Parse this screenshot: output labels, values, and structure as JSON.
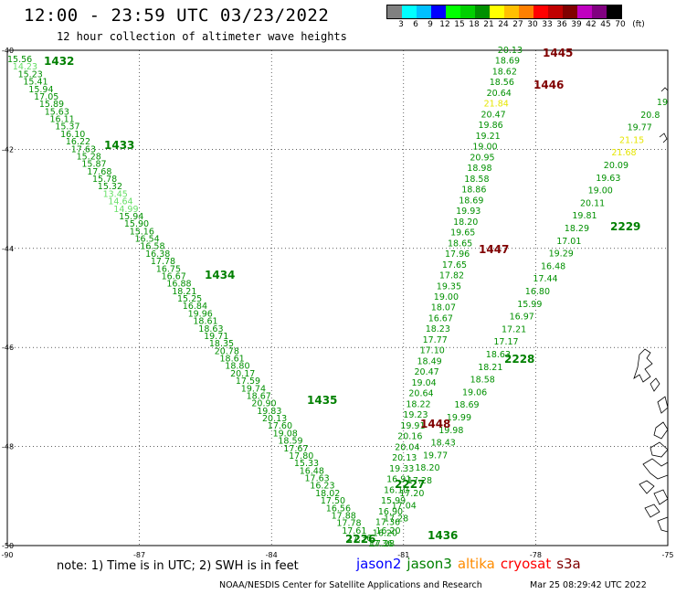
{
  "title": "12:00 - 23:59 UTC 03/23/2022",
  "subtitle": "12 hour collection of altimeter wave heights",
  "colorbar": {
    "unit": "(ft)",
    "labels": [
      "3",
      "6",
      "9",
      "12",
      "15",
      "18",
      "21",
      "24",
      "27",
      "30",
      "33",
      "36",
      "39",
      "42",
      "45",
      "70"
    ],
    "colors": [
      "#808080",
      "#00ffff",
      "#00c0ff",
      "#0000ff",
      "#00ff00",
      "#00d000",
      "#009000",
      "#ffff00",
      "#ffc000",
      "#ff8000",
      "#ff0000",
      "#c00000",
      "#800000",
      "#c000c0",
      "#800080",
      "#000000"
    ]
  },
  "axes": {
    "lat_labels": [
      "-40",
      "-42",
      "-44",
      "-46",
      "-48",
      "-50"
    ],
    "lon_labels": [
      "-90",
      "-87",
      "-84",
      "-81",
      "-78",
      "-75"
    ]
  },
  "tracks": [
    {
      "label": "1432",
      "color": "#008000"
    },
    {
      "label": "1433",
      "color": "#008000"
    },
    {
      "label": "1434",
      "color": "#008000"
    },
    {
      "label": "1435",
      "color": "#008000"
    },
    {
      "label": "1436",
      "color": "#008000"
    },
    {
      "label": "1445",
      "color": "#800000"
    },
    {
      "label": "1446",
      "color": "#800000"
    },
    {
      "label": "1447",
      "color": "#800000"
    },
    {
      "label": "1448",
      "color": "#800000"
    },
    {
      "label": "2226",
      "color": "#008000"
    },
    {
      "label": "2227",
      "color": "#008000"
    },
    {
      "label": "2228",
      "color": "#008000"
    },
    {
      "label": "2229",
      "color": "#008000"
    }
  ],
  "chart_data": {
    "type": "scatter",
    "xlim": [
      -90,
      -75
    ],
    "ylim": [
      -50,
      -40
    ],
    "grid": true,
    "series": [
      {
        "values": [
          "15.56",
          "14.23",
          "15.23",
          "15.41",
          "15.94",
          "17.05",
          "15.89",
          "15.63",
          "16.11",
          "15.37",
          "16.10",
          "16.22",
          "17.63",
          "15.28",
          "15.87",
          "17.68",
          "15.78",
          "15.32",
          "13.45",
          "14.64",
          "14.99",
          "15.94",
          "15.90",
          "15.16",
          "16.54",
          "16.58",
          "16.38",
          "17.78",
          "16.75",
          "16.67",
          "16.88",
          "18.21",
          "15.25",
          "16.84",
          "19.96",
          "18.61",
          "18.63",
          "19.71",
          "18.35",
          "20.78",
          "18.61",
          "18.80",
          "20.17",
          "17.59",
          "19.74",
          "18.67",
          "20.90",
          "19.83",
          "20.13",
          "17.60",
          "19.08",
          "18.59",
          "17.67",
          "17.80",
          "15.33",
          "16.48",
          "17.63",
          "16.23",
          "18.02",
          "17.50",
          "16.56",
          "17.88",
          "17.78",
          "17.61",
          "17.36"
        ]
      },
      {
        "values": [
          "20.13",
          "18.69",
          "18.62",
          "18.56",
          "20.64",
          "21.84",
          "20.47",
          "19.86",
          "19.21",
          "19.00",
          "20.95",
          "18.98",
          "18.58",
          "18.86",
          "18.69",
          "19.93",
          "18.20",
          "19.65",
          "18.65",
          "17.96",
          "17.65",
          "17.82",
          "19.35",
          "19.00",
          "18.07",
          "16.67",
          "18.23",
          "17.77",
          "17.10",
          "18.49",
          "20.47",
          "19.04",
          "20.64",
          "18.22",
          "19.23",
          "19.91",
          "20.16",
          "20.04",
          "20.13",
          "19.33",
          "16.91",
          "16.10",
          "15.99",
          "16.90",
          "17.36",
          "16.20",
          "17.28"
        ]
      },
      {
        "values": [
          "19",
          "20.8",
          "19.77",
          "21.15",
          "21.68",
          "20.09",
          "19.63",
          "19.00",
          "20.11",
          "19.81",
          "18.29",
          "17.01",
          "19.29",
          "16.48",
          "17.44",
          "16.80",
          "15.99",
          "16.97",
          "17.21",
          "17.17",
          "18.63",
          "18.21",
          "18.58",
          "19.06",
          "18.69",
          "19.99",
          "19.98",
          "18.43",
          "19.77",
          "18.20",
          "17.28",
          "17.20",
          "17.04",
          "17.28",
          "16.20",
          "17.36"
        ]
      }
    ]
  },
  "notes": "note: 1) Time is in UTC; 2) SWH is in feet",
  "missions": [
    {
      "name": "jason2",
      "color": "#0000ff"
    },
    {
      "name": "jason3",
      "color": "#008000"
    },
    {
      "name": "altika",
      "color": "#ff8c00"
    },
    {
      "name": "cryosat",
      "color": "#ff0000"
    },
    {
      "name": "s3a",
      "color": "#800000"
    }
  ],
  "credit": "NOAA/NESDIS Center for Satellite Applications and Research",
  "timestamp": "Mar 25 08:29:42 UTC 2022"
}
